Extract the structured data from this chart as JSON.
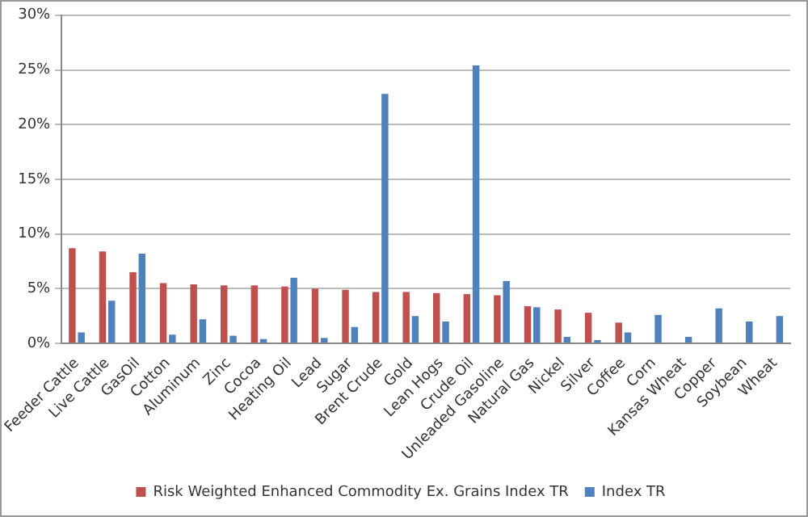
{
  "chart_data": {
    "type": "bar",
    "categories": [
      "Feeder Cattle",
      "Live Cattle",
      "GasOil",
      "Cotton",
      "Aluminum",
      "Zinc",
      "Cocoa",
      "Heating Oil",
      "Lead",
      "Sugar",
      "Brent Crude",
      "Gold",
      "Lean Hogs",
      "Crude Oil",
      "Unleaded Gasoline",
      "Natural Gas",
      "Nickel",
      "Silver",
      "Coffee",
      "Corn",
      "Kansas Wheat",
      "Copper",
      "Soybean",
      "Wheat"
    ],
    "series": [
      {
        "name": "Risk Weighted Enhanced Commodity Ex. Grains Index TR",
        "color": "#c0504d",
        "values": [
          8.7,
          8.4,
          6.5,
          5.5,
          5.4,
          5.3,
          5.3,
          5.2,
          5.0,
          4.9,
          4.7,
          4.7,
          4.6,
          4.5,
          4.4,
          3.4,
          3.1,
          2.8,
          1.9,
          null,
          null,
          null,
          null,
          null
        ]
      },
      {
        "name": "Index TR",
        "color": "#4f81bd",
        "values": [
          1.0,
          3.9,
          8.2,
          0.8,
          2.2,
          0.7,
          0.4,
          6.0,
          0.5,
          1.5,
          22.8,
          2.5,
          2.0,
          25.4,
          5.7,
          3.3,
          0.6,
          0.3,
          1.0,
          2.6,
          0.6,
          3.2,
          2.0,
          2.5
        ]
      }
    ],
    "ylim": [
      0,
      30
    ],
    "yticks": [
      {
        "value": 0,
        "label": "0%"
      },
      {
        "value": 5,
        "label": "5%"
      },
      {
        "value": 10,
        "label": "10%"
      },
      {
        "value": 15,
        "label": "15%"
      },
      {
        "value": 20,
        "label": "20%"
      },
      {
        "value": 25,
        "label": "25%"
      },
      {
        "value": 30,
        "label": "30%"
      }
    ],
    "grid": "y",
    "legend": "bottom"
  }
}
